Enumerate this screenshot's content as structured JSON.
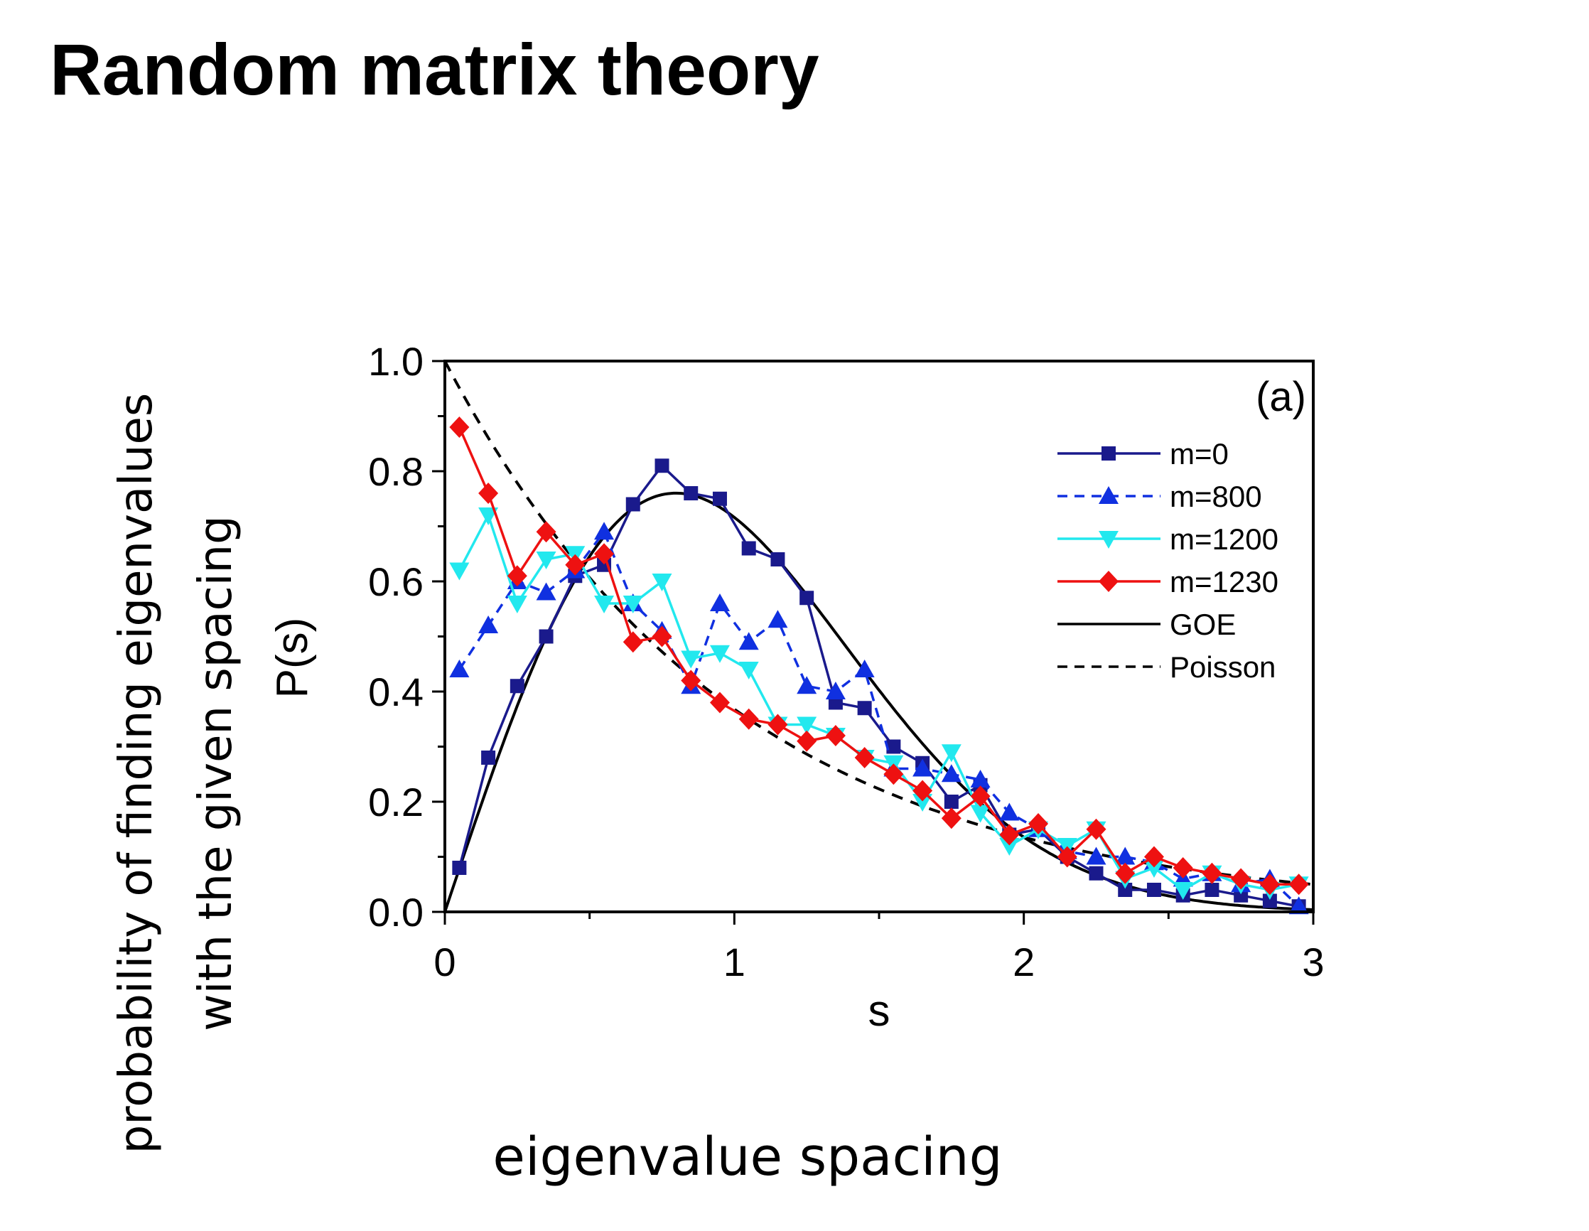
{
  "slide": {
    "title": "Random matrix theory",
    "y_description_line1": "probability of finding eigenvalues",
    "y_description_line2": "with the given spacing",
    "x_description": "eigenvalue spacing"
  },
  "chart_data": {
    "type": "line",
    "title": "",
    "panel_label": "(a)",
    "xlabel": "s",
    "ylabel": "P(s)",
    "xlim": [
      0,
      3
    ],
    "ylim": [
      0,
      1.0
    ],
    "x_ticks": [
      "0",
      "1",
      "2",
      "3"
    ],
    "y_ticks": [
      "0.0",
      "0.2",
      "0.4",
      "0.6",
      "0.8",
      "1.0"
    ],
    "grid": false,
    "legend_position": "top-right",
    "series": [
      {
        "name": "m=0",
        "color": "#1a1a8c",
        "marker": "square",
        "line": "solid",
        "x": [
          0.05,
          0.15,
          0.25,
          0.35,
          0.45,
          0.55,
          0.65,
          0.75,
          0.85,
          0.95,
          1.05,
          1.15,
          1.25,
          1.35,
          1.45,
          1.55,
          1.65,
          1.75,
          1.85,
          1.95,
          2.05,
          2.15,
          2.25,
          2.35,
          2.45,
          2.55,
          2.65,
          2.75,
          2.85,
          2.95
        ],
        "y": [
          0.08,
          0.28,
          0.41,
          0.5,
          0.61,
          0.63,
          0.74,
          0.81,
          0.76,
          0.75,
          0.66,
          0.64,
          0.57,
          0.38,
          0.37,
          0.3,
          0.27,
          0.2,
          0.23,
          0.14,
          0.15,
          0.1,
          0.07,
          0.04,
          0.04,
          0.03,
          0.04,
          0.03,
          0.02,
          0.01
        ]
      },
      {
        "name": "m=800",
        "color": "#1030e0",
        "marker": "triangle-up",
        "line": "dashed",
        "x": [
          0.05,
          0.15,
          0.25,
          0.35,
          0.45,
          0.55,
          0.65,
          0.75,
          0.85,
          0.95,
          1.05,
          1.15,
          1.25,
          1.35,
          1.45,
          1.55,
          1.65,
          1.75,
          1.85,
          1.95,
          2.05,
          2.15,
          2.25,
          2.35,
          2.45,
          2.55,
          2.65,
          2.75,
          2.85,
          2.95
        ],
        "y": [
          0.44,
          0.52,
          0.6,
          0.58,
          0.62,
          0.69,
          0.56,
          0.51,
          0.41,
          0.56,
          0.49,
          0.53,
          0.41,
          0.4,
          0.44,
          0.26,
          0.26,
          0.25,
          0.24,
          0.18,
          0.15,
          0.11,
          0.1,
          0.1,
          0.09,
          0.06,
          0.07,
          0.05,
          0.06,
          0.01
        ]
      },
      {
        "name": "m=1200",
        "color": "#22e8ee",
        "marker": "triangle-down",
        "line": "solid",
        "x": [
          0.05,
          0.15,
          0.25,
          0.35,
          0.45,
          0.55,
          0.65,
          0.75,
          0.85,
          0.95,
          1.05,
          1.15,
          1.25,
          1.35,
          1.45,
          1.55,
          1.65,
          1.75,
          1.85,
          1.95,
          2.05,
          2.15,
          2.25,
          2.35,
          2.45,
          2.55,
          2.65,
          2.75,
          2.85,
          2.95
        ],
        "y": [
          0.62,
          0.72,
          0.56,
          0.64,
          0.65,
          0.56,
          0.56,
          0.6,
          0.46,
          0.47,
          0.44,
          0.34,
          0.34,
          0.32,
          0.28,
          0.27,
          0.2,
          0.29,
          0.18,
          0.12,
          0.15,
          0.12,
          0.15,
          0.06,
          0.08,
          0.04,
          0.07,
          0.05,
          0.04,
          0.05
        ]
      },
      {
        "name": "m=1230",
        "color": "#ee1111",
        "marker": "diamond",
        "line": "solid",
        "x": [
          0.05,
          0.15,
          0.25,
          0.35,
          0.45,
          0.55,
          0.65,
          0.75,
          0.85,
          0.95,
          1.05,
          1.15,
          1.25,
          1.35,
          1.45,
          1.55,
          1.65,
          1.75,
          1.85,
          1.95,
          2.05,
          2.15,
          2.25,
          2.35,
          2.45,
          2.55,
          2.65,
          2.75,
          2.85,
          2.95
        ],
        "y": [
          0.88,
          0.76,
          0.61,
          0.69,
          0.63,
          0.65,
          0.49,
          0.5,
          0.42,
          0.38,
          0.35,
          0.34,
          0.31,
          0.32,
          0.28,
          0.25,
          0.22,
          0.17,
          0.21,
          0.14,
          0.16,
          0.1,
          0.15,
          0.07,
          0.1,
          0.08,
          0.07,
          0.06,
          0.05,
          0.05
        ]
      },
      {
        "name": "GOE",
        "color": "#000000",
        "marker": "none",
        "line": "solid",
        "formula": "(pi/2) s exp(-pi s^2 / 4)"
      },
      {
        "name": "Poisson",
        "color": "#000000",
        "marker": "none",
        "line": "dashed",
        "formula": "exp(-s)"
      }
    ]
  }
}
